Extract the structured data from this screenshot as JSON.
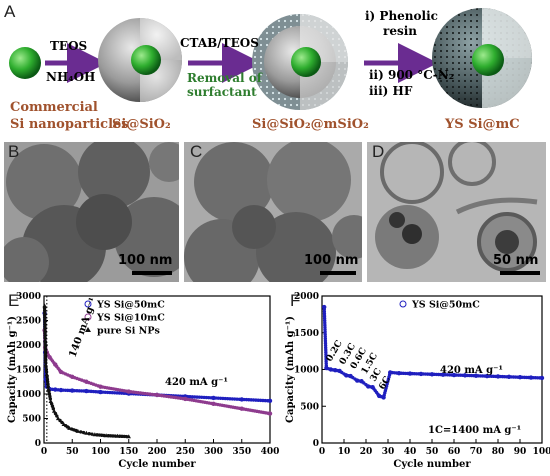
{
  "panels": {
    "A": "A",
    "B": "B",
    "C": "C",
    "D": "D",
    "E": "E",
    "F": "F"
  },
  "schematic": {
    "step1_top": "TEOS",
    "step1_bottom": "NH₄OH",
    "step2_top": "CTAB/TEOS",
    "step2_bottom_1": "Removal of",
    "step2_bottom_2": "surfactant",
    "step3_1": "i) Phenolic",
    "step3_2": "resin",
    "step3_3": "ii) 900 °C-N₂",
    "step3_4": "iii) HF",
    "label_commercial_1": "Commercial",
    "label_commercial_2": "Si nanoparticles",
    "label_si_sio2": "Si@SiO₂",
    "label_si_sio2_msio2": "Si@SiO₂@mSiO₂",
    "label_ys": "YS Si@mC"
  },
  "tem": {
    "B_scale": "100 nm",
    "C_scale": "100 nm",
    "D_scale": "50 nm"
  },
  "chart_data": [
    {
      "type": "scatter",
      "panel": "E",
      "xlabel": "Cycle number",
      "ylabel": "Capacity (mAh g⁻¹)",
      "xlim": [
        0,
        400
      ],
      "ylim": [
        0,
        3000
      ],
      "xticks": [
        0,
        50,
        100,
        150,
        200,
        250,
        300,
        350,
        400
      ],
      "yticks": [
        0,
        500,
        1000,
        1500,
        2000,
        2500,
        3000
      ],
      "annotations": [
        "140 mA g⁻¹",
        "420 mA g⁻¹"
      ],
      "legend": "top-left",
      "series": [
        {
          "name": "YS Si@50mC",
          "color": "#1f1fbf",
          "x": [
            1,
            2,
            3,
            5,
            10,
            20,
            30,
            50,
            75,
            100,
            150,
            200,
            250,
            300,
            350,
            400
          ],
          "y": [
            2650,
            1850,
            1300,
            1150,
            1100,
            1090,
            1080,
            1070,
            1060,
            1040,
            1010,
            980,
            950,
            920,
            890,
            860
          ]
        },
        {
          "name": "YS Si@10mC",
          "color": "#8e3b8e",
          "x": [
            1,
            2,
            3,
            5,
            10,
            20,
            30,
            50,
            75,
            100,
            150,
            200,
            250,
            300,
            350,
            400
          ],
          "y": [
            2300,
            1950,
            1900,
            1850,
            1750,
            1600,
            1450,
            1350,
            1250,
            1150,
            1050,
            980,
            900,
            800,
            700,
            600
          ]
        },
        {
          "name": "pure Si NPs",
          "color": "#111111",
          "x": [
            1,
            2,
            3,
            5,
            8,
            12,
            18,
            25,
            35,
            45,
            60,
            75,
            90,
            110,
            130,
            150
          ],
          "y": [
            2800,
            2100,
            1600,
            1400,
            1100,
            850,
            650,
            500,
            380,
            300,
            240,
            200,
            170,
            150,
            140,
            130
          ]
        }
      ]
    },
    {
      "type": "scatter",
      "panel": "F",
      "xlabel": "Cycle number",
      "ylabel": "Capacity (mAh g⁻¹)",
      "xlim": [
        0,
        100
      ],
      "ylim": [
        0,
        2000
      ],
      "xticks": [
        0,
        10,
        20,
        30,
        40,
        50,
        60,
        70,
        80,
        90,
        100
      ],
      "yticks": [
        0,
        500,
        1000,
        1500,
        2000
      ],
      "annotations": [
        "0.2C",
        "0.3C",
        "0.6C",
        "1.5C",
        "3C",
        "6C",
        "420 mA g⁻¹",
        "1C=1400 mA g⁻¹"
      ],
      "legend": "top-right",
      "series": [
        {
          "name": "YS Si@50mC",
          "color": "#1f1fbf",
          "x": [
            1,
            2,
            4,
            6,
            8,
            11,
            13,
            16,
            18,
            21,
            23,
            26,
            28,
            31,
            35,
            40,
            45,
            50,
            55,
            60,
            65,
            70,
            75,
            80,
            85,
            90,
            95,
            100
          ],
          "y": [
            1850,
            1020,
            1000,
            990,
            980,
            920,
            910,
            850,
            840,
            770,
            760,
            640,
            620,
            960,
            950,
            945,
            940,
            935,
            930,
            925,
            920,
            915,
            910,
            905,
            900,
            895,
            890,
            885
          ]
        }
      ]
    }
  ]
}
